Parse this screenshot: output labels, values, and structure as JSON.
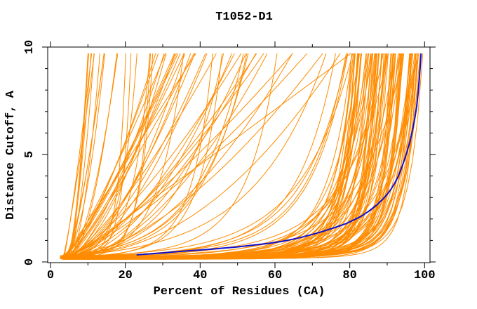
{
  "chart_data": {
    "type": "line",
    "title": "T1052-D1",
    "xlabel": "Percent of Residues (CA)",
    "ylabel": "Distance Cutoff, A",
    "xlim": [
      0,
      100
    ],
    "ylim": [
      0,
      10
    ],
    "grid": false,
    "legend": null,
    "frame": "box with outward ticks on all four sides",
    "x_ticks": {
      "major": [
        0,
        20,
        40,
        60,
        80,
        100
      ],
      "labels": [
        "0",
        "20",
        "40",
        "60",
        "80",
        "100"
      ],
      "minor": [
        10,
        30,
        50,
        70,
        90
      ]
    },
    "y_ticks": {
      "major": [
        0,
        5,
        10
      ],
      "labels": [
        "0",
        "5",
        "10"
      ],
      "minor": [
        1,
        2,
        3,
        4,
        6,
        7,
        8,
        9
      ]
    },
    "colors": {
      "models": "#ff8c00",
      "highlight": "#1010cc",
      "frame": "#000000",
      "background": "#ffffff"
    },
    "series": [
      {
        "name": "highlighted model curve (blue)",
        "color_key": "highlight",
        "stroke_width": 2,
        "points": [
          [
            23,
            0.33
          ],
          [
            26,
            0.37
          ],
          [
            30,
            0.42
          ],
          [
            34,
            0.48
          ],
          [
            38,
            0.53
          ],
          [
            42,
            0.58
          ],
          [
            46,
            0.64
          ],
          [
            50,
            0.7
          ],
          [
            54,
            0.78
          ],
          [
            58,
            0.86
          ],
          [
            62,
            0.96
          ],
          [
            66,
            1.1
          ],
          [
            70,
            1.28
          ],
          [
            73,
            1.43
          ],
          [
            76,
            1.6
          ],
          [
            79,
            1.78
          ],
          [
            81,
            1.95
          ],
          [
            83,
            2.12
          ],
          [
            85,
            2.35
          ],
          [
            87,
            2.62
          ],
          [
            88,
            2.78
          ],
          [
            89,
            2.95
          ],
          [
            90,
            3.15
          ],
          [
            91,
            3.38
          ],
          [
            92,
            3.66
          ],
          [
            93,
            4.0
          ],
          [
            94,
            4.45
          ],
          [
            95,
            4.95
          ],
          [
            96,
            5.55
          ],
          [
            96.8,
            6.15
          ],
          [
            97.4,
            6.7
          ],
          [
            97.9,
            7.25
          ],
          [
            98.3,
            7.9
          ],
          [
            98.6,
            8.55
          ],
          [
            98.85,
            9.15
          ],
          [
            99.05,
            9.7
          ]
        ]
      }
    ],
    "ensemble": {
      "name": "all model curves (orange)",
      "description": "~160 overlapping per-model cumulative distance curves; individually unresolvable in the source image, regenerated statistically from these parameters",
      "color_key": "models",
      "stroke_width": 1,
      "count": 160,
      "seed": 20523,
      "x_start_range": [
        2.4,
        5.0
      ],
      "y_start_range": [
        0.12,
        0.3
      ],
      "y_top": 9.7,
      "good_fraction": 0.58,
      "good_xsat_range": [
        80,
        99.6
      ],
      "good_sharpness_range": [
        2.0,
        9.0
      ],
      "poor_xsat_range": [
        6.5,
        81.5
      ],
      "poor_sharpness_range": [
        1.0,
        2.1
      ],
      "poor_log_family_fraction": 0.35
    }
  }
}
